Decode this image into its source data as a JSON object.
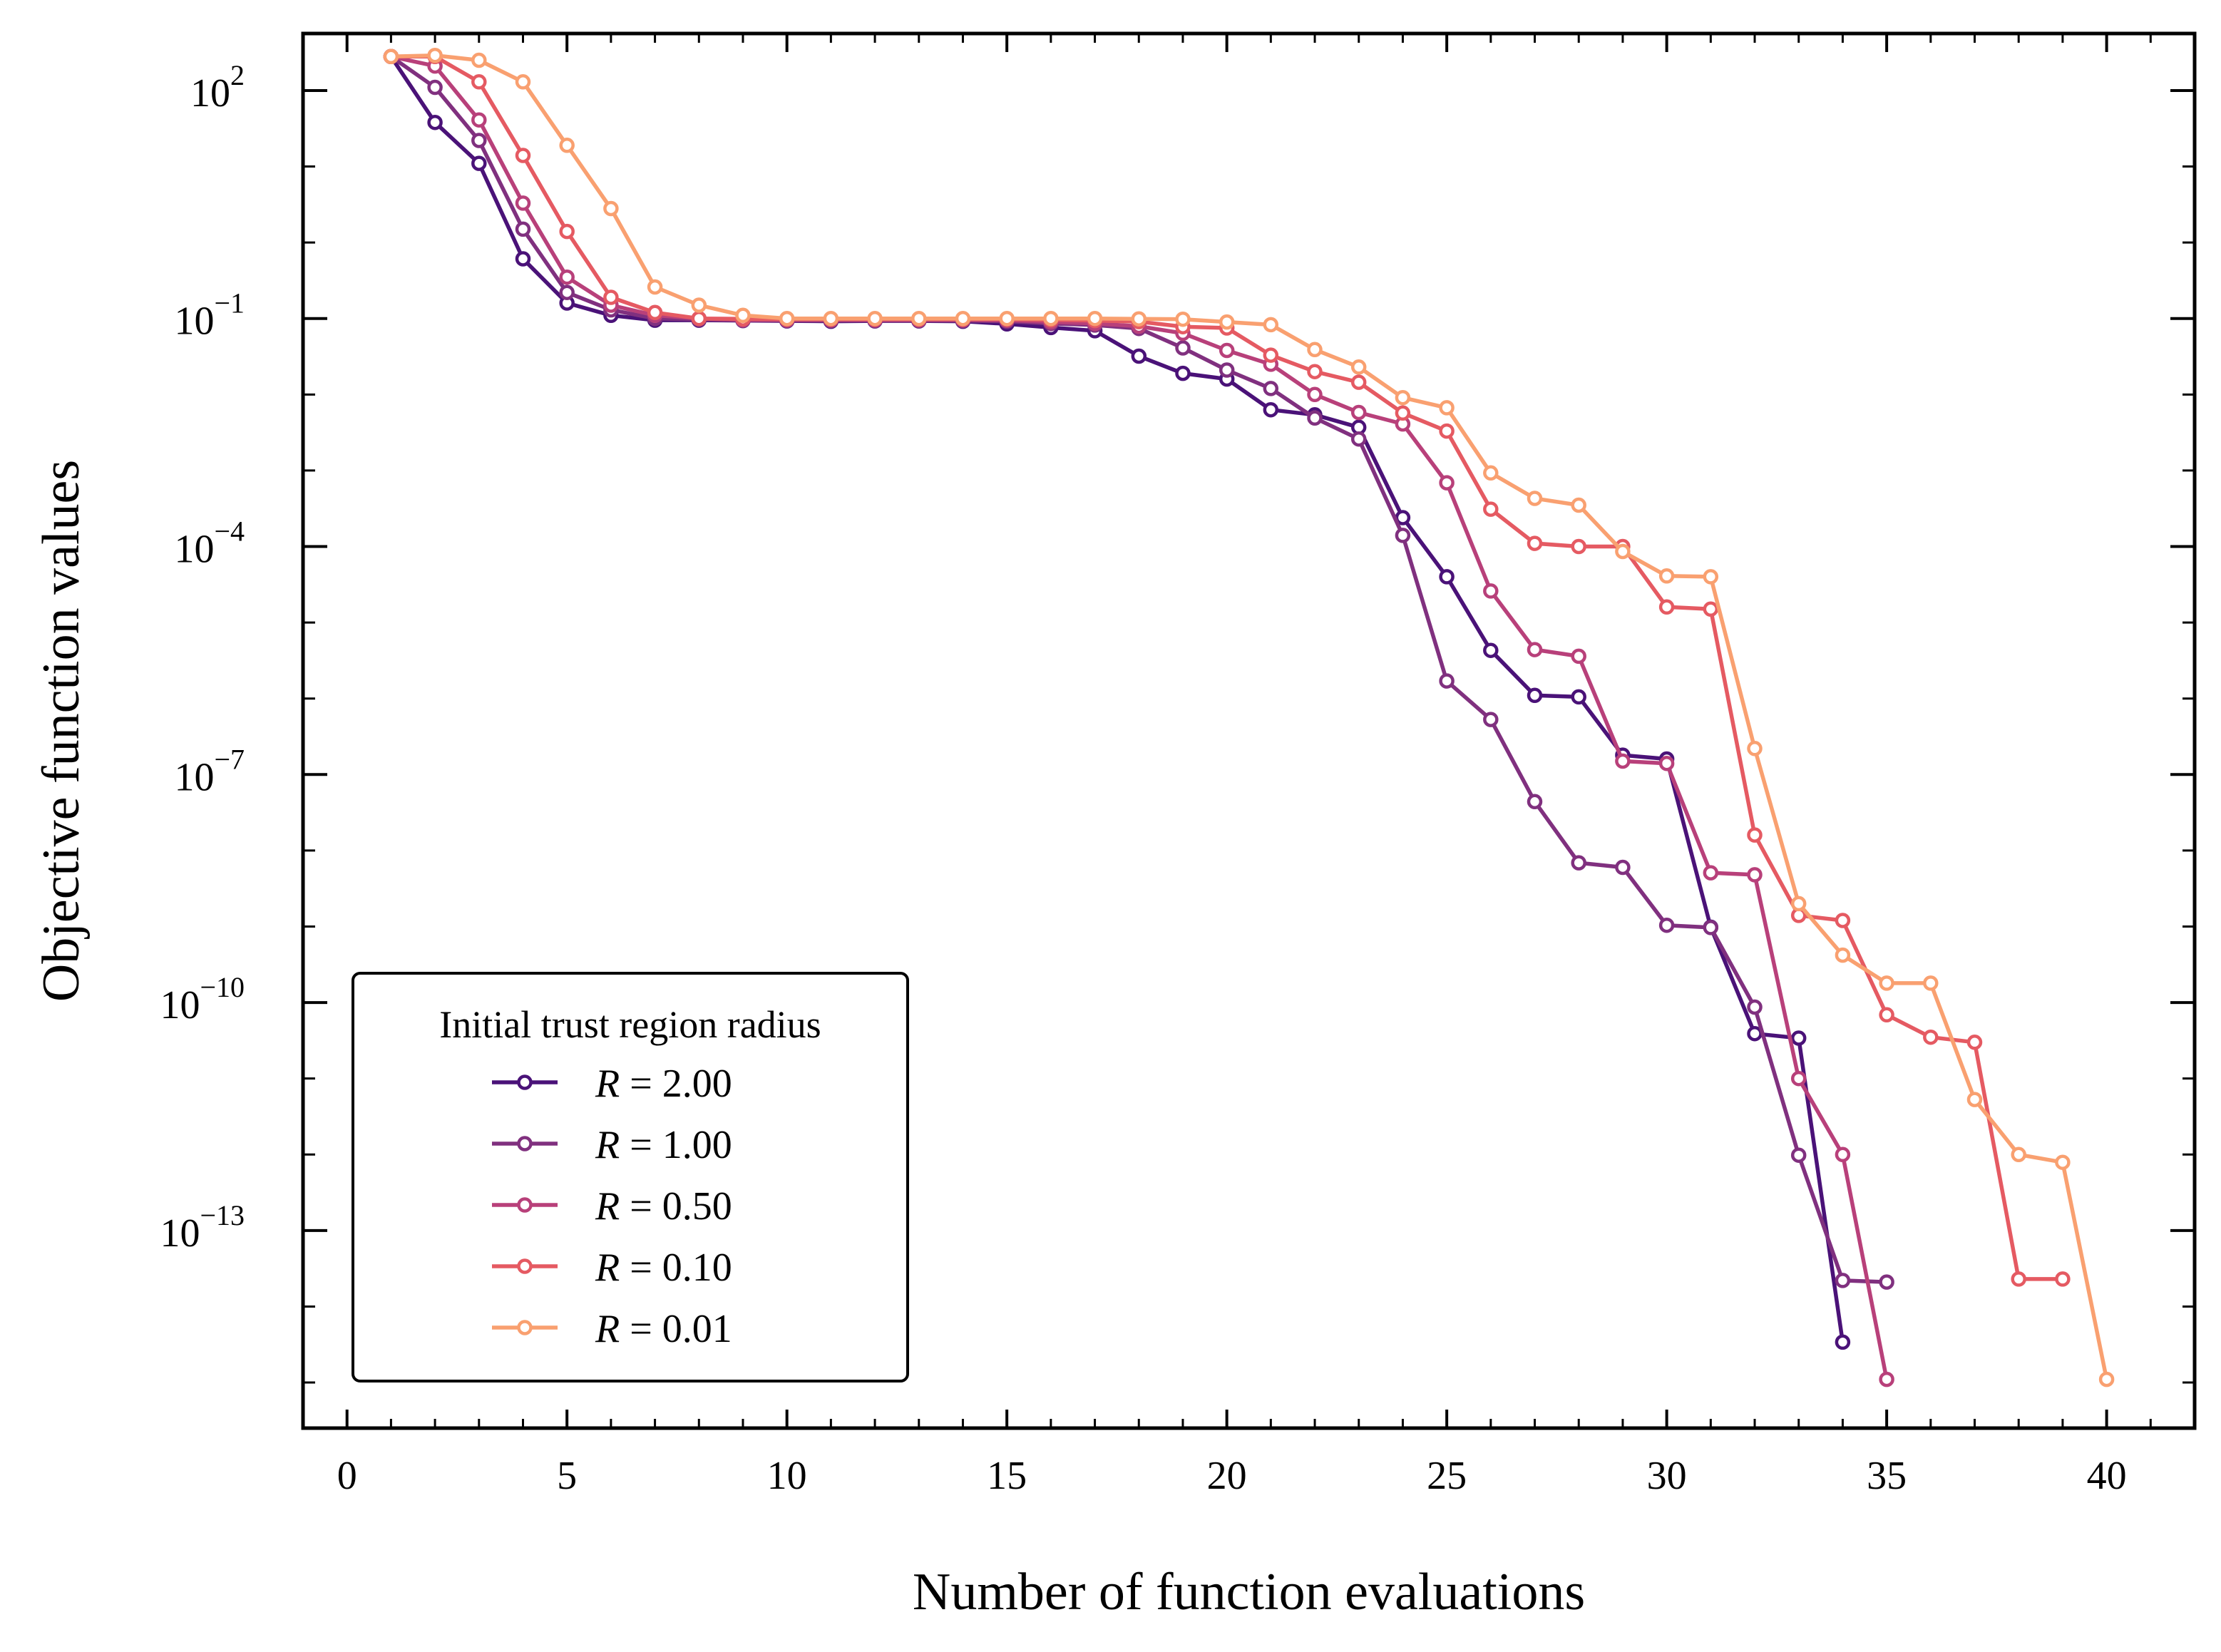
{
  "chart_data": {
    "type": "line",
    "xlabel": "Number of function evaluations",
    "ylabel": "Objective function values",
    "xlim": [
      -1,
      42
    ],
    "ylim_log10": [
      -15.6,
      2.75
    ],
    "y_scale": "log",
    "grid": false,
    "legend_placement": "lower-left",
    "legend_title": "Initial trust region radius",
    "x_ticks": [
      {
        "value": 0,
        "label": "0"
      },
      {
        "value": 5,
        "label": "5"
      },
      {
        "value": 10,
        "label": "10"
      },
      {
        "value": 15,
        "label": "15"
      },
      {
        "value": 20,
        "label": "20"
      },
      {
        "value": 25,
        "label": "25"
      },
      {
        "value": 30,
        "label": "30"
      },
      {
        "value": 35,
        "label": "35"
      },
      {
        "value": 40,
        "label": "40"
      }
    ],
    "y_ticks": [
      {
        "exp": 2,
        "base": "10",
        "sup": "2"
      },
      {
        "exp": -1,
        "base": "10",
        "sup": "−1"
      },
      {
        "exp": -4,
        "base": "10",
        "sup": "−4"
      },
      {
        "exp": -7,
        "base": "10",
        "sup": "−7"
      },
      {
        "exp": -10,
        "base": "10",
        "sup": "−10"
      },
      {
        "exp": -13,
        "base": "10",
        "sup": "−13"
      }
    ],
    "series": [
      {
        "name": "R = 2.00",
        "label_var": "R",
        "label_rest": " = 2.00",
        "color": "#4a1278",
        "x": [
          1,
          2,
          3,
          4,
          5,
          6,
          7,
          8,
          9,
          10,
          11,
          12,
          13,
          14,
          15,
          16,
          17,
          18,
          19,
          20,
          21,
          22,
          23,
          24,
          25,
          26,
          27,
          28,
          29,
          30,
          31,
          32,
          33,
          34
        ],
        "y": [
          280,
          38.0,
          11.0,
          0.61,
          0.16,
          0.11,
          0.095,
          0.095,
          0.094,
          0.093,
          0.092,
          0.093,
          0.093,
          0.092,
          0.085,
          0.076,
          0.069,
          0.032,
          0.019,
          0.016,
          0.0063,
          0.0054,
          0.0037,
          0.00024,
          4e-05,
          4.3e-06,
          1.1e-06,
          1.05e-06,
          1.8e-07,
          1.6e-07,
          9.8e-10,
          3.9e-11,
          3.4e-11,
          3.4e-15
        ]
      },
      {
        "name": "R = 1.00",
        "label_var": "R",
        "label_rest": " = 1.00",
        "color": "#80307f",
        "x": [
          1,
          2,
          3,
          4,
          5,
          6,
          7,
          8,
          9,
          10,
          11,
          12,
          13,
          14,
          15,
          16,
          17,
          18,
          19,
          20,
          21,
          22,
          23,
          24,
          25,
          26,
          27,
          28,
          29,
          30,
          31,
          32,
          33,
          34,
          35
        ],
        "y": [
          280,
          110.0,
          22.0,
          1.5,
          0.22,
          0.13,
          0.1,
          0.097,
          0.095,
          0.094,
          0.094,
          0.094,
          0.094,
          0.094,
          0.092,
          0.086,
          0.082,
          0.074,
          0.041,
          0.021,
          0.012,
          0.0049,
          0.0026,
          0.00014,
          1.7e-06,
          5.3e-07,
          4.4e-08,
          6.9e-09,
          6e-09,
          1.04e-09,
          9.7e-10,
          8.7e-11,
          9.8e-13,
          2.2e-14,
          2.1e-14
        ]
      },
      {
        "name": "R = 0.50",
        "label_var": "R",
        "label_rest": " = 0.50",
        "color": "#b8407a",
        "x": [
          1,
          2,
          3,
          4,
          5,
          6,
          7,
          8,
          9,
          10,
          11,
          12,
          13,
          14,
          15,
          16,
          17,
          18,
          19,
          20,
          21,
          22,
          23,
          24,
          25,
          26,
          27,
          28,
          29,
          30,
          31,
          32,
          33,
          34,
          35
        ],
        "y": [
          280,
          210.0,
          41.0,
          3.3,
          0.35,
          0.15,
          0.11,
          0.1,
          0.096,
          0.096,
          0.096,
          0.096,
          0.096,
          0.096,
          0.095,
          0.09,
          0.086,
          0.079,
          0.064,
          0.038,
          0.025,
          0.01,
          0.0058,
          0.0041,
          0.00069,
          2.6e-05,
          4.4e-06,
          3.6e-06,
          1.5e-07,
          1.4e-07,
          5.1e-09,
          4.8e-09,
          1e-11,
          1e-12,
          1.1e-15
        ]
      },
      {
        "name": "R = 0.10",
        "label_var": "R",
        "label_rest": " = 0.10",
        "color": "#e55a62",
        "x": [
          1,
          2,
          3,
          4,
          5,
          6,
          7,
          8,
          9,
          10,
          11,
          12,
          13,
          14,
          15,
          16,
          17,
          18,
          19,
          20,
          21,
          22,
          23,
          24,
          25,
          26,
          27,
          28,
          29,
          30,
          31,
          32,
          33,
          34,
          35,
          36,
          37,
          38,
          39
        ],
        "y": [
          280,
          280.0,
          130.0,
          14.0,
          1.4,
          0.19,
          0.12,
          0.1,
          0.099,
          0.098,
          0.098,
          0.098,
          0.098,
          0.098,
          0.098,
          0.096,
          0.094,
          0.091,
          0.078,
          0.075,
          0.033,
          0.02,
          0.0145,
          0.0057,
          0.0033,
          0.00031,
          0.00011,
          0.0001,
          0.0001,
          1.6e-05,
          1.5e-05,
          1.6e-08,
          1.4e-09,
          1.2e-09,
          6.9e-11,
          3.5e-11,
          3e-11,
          2.3e-14,
          2.3e-14
        ]
      },
      {
        "name": "R = 0.01",
        "label_var": "R",
        "label_rest": " = 0.01",
        "color": "#f9a070",
        "x": [
          1,
          2,
          3,
          4,
          5,
          6,
          7,
          8,
          9,
          10,
          11,
          12,
          13,
          14,
          15,
          16,
          17,
          18,
          19,
          20,
          21,
          22,
          23,
          24,
          25,
          26,
          27,
          28,
          29,
          30,
          31,
          32,
          33,
          34,
          35,
          36,
          37,
          38,
          39,
          40
        ],
        "y": [
          280,
          290.0,
          250.0,
          130.0,
          19.0,
          2.8,
          0.26,
          0.15,
          0.11,
          0.1,
          0.1,
          0.1,
          0.1,
          0.1,
          0.1,
          0.1,
          0.1,
          0.099,
          0.098,
          0.09,
          0.083,
          0.039,
          0.023,
          0.0091,
          0.0067,
          0.00093,
          0.00043,
          0.00035,
          8.6e-05,
          4.1e-05,
          4e-05,
          2.2e-07,
          2e-09,
          4.2e-10,
          1.8e-10,
          1.8e-10,
          5.3e-12,
          1e-12,
          7.9e-13,
          1.1e-15
        ]
      }
    ]
  }
}
